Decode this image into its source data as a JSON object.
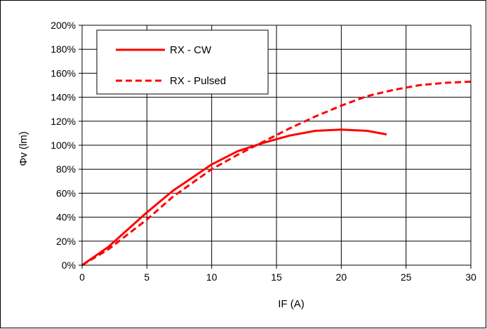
{
  "chart_data": {
    "type": "line",
    "xlabel": "IF (A)",
    "ylabel": "Φv (lm)",
    "xlim": [
      0,
      30
    ],
    "ylim": [
      0,
      200
    ],
    "x_ticks": [
      0,
      5,
      10,
      15,
      20,
      25,
      30
    ],
    "y_ticks": [
      0,
      20,
      40,
      60,
      80,
      100,
      120,
      140,
      160,
      180,
      200
    ],
    "y_tick_suffix": "%",
    "grid": true,
    "legend_position": "top-left",
    "series": [
      {
        "name": "RX - CW",
        "style": "solid",
        "color": "#ff0000",
        "x": [
          0,
          2,
          5,
          7,
          10,
          12,
          14,
          16,
          18,
          20,
          22,
          23.5
        ],
        "y": [
          0,
          15,
          44,
          62,
          84,
          95,
          102,
          108,
          112,
          113,
          112,
          109
        ]
      },
      {
        "name": "RX - Pulsed",
        "style": "dashed",
        "color": "#ff0000",
        "x": [
          0,
          2,
          5,
          7,
          10,
          12,
          14,
          16,
          18,
          20,
          22,
          24,
          26,
          28,
          30
        ],
        "y": [
          0,
          13,
          38,
          57,
          80,
          92,
          103,
          114,
          124,
          133,
          141,
          146,
          150,
          152,
          153
        ]
      }
    ]
  }
}
